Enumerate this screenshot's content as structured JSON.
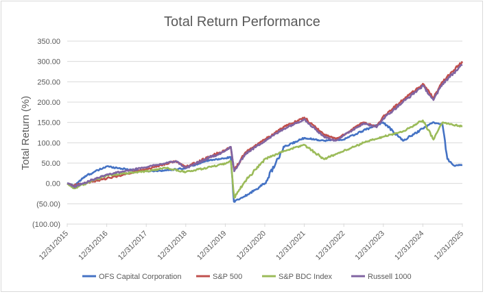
{
  "chart_data": {
    "type": "line",
    "title": "Total Return Performance",
    "xlabel": "",
    "ylabel": "Total Return (%)",
    "y_ticks": [
      "(100.00)",
      "(50.00)",
      "0.00",
      "50.00",
      "100.00",
      "150.00",
      "200.00",
      "250.00",
      "300.00",
      "350.00"
    ],
    "ylim": [
      -100,
      350
    ],
    "x_ticks": [
      "12/31/2015",
      "12/31/2016",
      "12/31/2017",
      "12/31/2018",
      "12/31/2019",
      "12/31/2020",
      "12/31/2021",
      "12/31/2022",
      "12/31/2023",
      "12/31/2024",
      "12/31/2025"
    ],
    "xlim": [
      "2015-12-31",
      "2025-12-31"
    ],
    "grid": "horizontal",
    "legend_position": "bottom",
    "series": [
      {
        "name": "OFS Capital Corporation",
        "color": "#4472c4",
        "x": [
          "2015-12-31",
          "2016-03-01",
          "2016-06-30",
          "2016-12-31",
          "2017-06-30",
          "2017-12-31",
          "2018-06-30",
          "2018-12-31",
          "2019-06-30",
          "2019-12-31",
          "2020-02-20",
          "2020-03-20",
          "2020-06-30",
          "2020-12-31",
          "2021-06-30",
          "2021-12-31",
          "2022-06-30",
          "2022-12-31",
          "2023-06-30",
          "2023-12-31",
          "2024-06-30",
          "2024-12-31",
          "2025-03-31",
          "2025-06-30",
          "2025-08-15",
          "2025-10-15",
          "2025-12-31"
        ],
        "values": [
          0,
          -5,
          20,
          42,
          35,
          30,
          32,
          38,
          55,
          62,
          65,
          -45,
          -32,
          0,
          90,
          112,
          105,
          108,
          130,
          150,
          105,
          135,
          150,
          145,
          60,
          44,
          45
        ]
      },
      {
        "name": "S&P 500",
        "color": "#c0504d",
        "x": [
          "2015-12-31",
          "2016-03-01",
          "2016-12-31",
          "2017-12-31",
          "2018-10-01",
          "2018-12-31",
          "2019-12-31",
          "2020-02-20",
          "2020-03-23",
          "2020-06-30",
          "2020-12-31",
          "2021-06-30",
          "2021-12-31",
          "2022-06-30",
          "2022-10-15",
          "2022-12-31",
          "2023-06-30",
          "2023-10-30",
          "2023-12-31",
          "2024-06-30",
          "2024-12-31",
          "2025-04-08",
          "2025-06-30",
          "2025-12-31"
        ],
        "values": [
          0,
          -5,
          12,
          35,
          55,
          40,
          82,
          90,
          32,
          75,
          108,
          140,
          162,
          120,
          110,
          120,
          150,
          140,
          165,
          205,
          245,
          210,
          250,
          300
        ]
      },
      {
        "name": "S&P BDC Index",
        "color": "#9bbb59",
        "x": [
          "2015-12-31",
          "2016-03-01",
          "2016-12-31",
          "2017-12-31",
          "2018-06-30",
          "2018-12-31",
          "2019-12-31",
          "2020-02-20",
          "2020-03-23",
          "2020-06-30",
          "2020-12-31",
          "2021-06-30",
          "2021-12-31",
          "2022-06-30",
          "2022-12-31",
          "2023-06-30",
          "2023-12-31",
          "2024-06-30",
          "2024-12-31",
          "2025-04-08",
          "2025-06-30",
          "2025-12-31"
        ],
        "values": [
          0,
          -12,
          20,
          30,
          38,
          28,
          48,
          55,
          -35,
          5,
          60,
          80,
          95,
          60,
          80,
          100,
          115,
          128,
          155,
          108,
          150,
          140
        ]
      },
      {
        "name": "Russell 1000",
        "color": "#8064a2",
        "x": [
          "2015-12-31",
          "2016-03-01",
          "2016-12-31",
          "2017-12-31",
          "2018-10-01",
          "2018-12-31",
          "2019-12-31",
          "2020-02-20",
          "2020-03-23",
          "2020-06-30",
          "2020-12-31",
          "2021-06-30",
          "2021-12-31",
          "2022-06-30",
          "2022-10-15",
          "2022-12-31",
          "2023-06-30",
          "2023-10-30",
          "2023-12-31",
          "2024-06-30",
          "2024-12-31",
          "2025-04-08",
          "2025-06-30",
          "2025-12-31"
        ],
        "values": [
          0,
          -8,
          22,
          40,
          55,
          38,
          80,
          90,
          30,
          72,
          105,
          135,
          158,
          115,
          105,
          118,
          148,
          138,
          160,
          200,
          240,
          205,
          245,
          292
        ]
      }
    ]
  }
}
